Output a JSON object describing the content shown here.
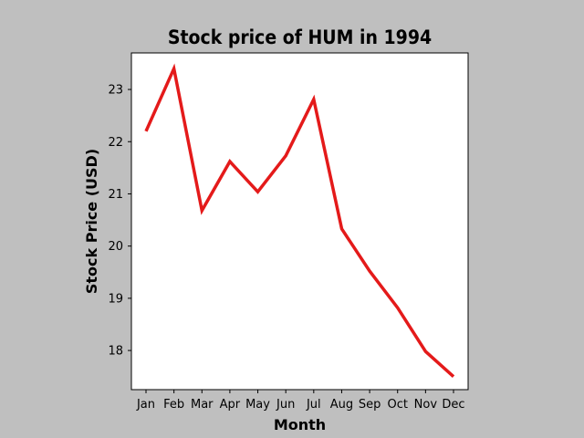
{
  "chart_data": {
    "type": "line",
    "title": "Stock price of HUM in 1994",
    "xlabel": "Month",
    "ylabel": "Stock Price (USD)",
    "categories": [
      "Jan",
      "Feb",
      "Mar",
      "Apr",
      "May",
      "Jun",
      "Jul",
      "Aug",
      "Sep",
      "Oct",
      "Nov",
      "Dec"
    ],
    "series": [
      {
        "values": [
          22.2,
          23.4,
          20.68,
          21.62,
          21.04,
          21.73,
          22.81,
          20.33,
          19.52,
          18.82,
          17.98,
          17.5
        ],
        "color": "#e41a1a"
      }
    ],
    "yticks": [
      18,
      19,
      20,
      21,
      22,
      23
    ],
    "ylim": [
      17.25,
      23.7
    ],
    "grid": false,
    "legend": "none"
  },
  "colors": {
    "background": "#bfbfbf",
    "plot_background": "#ffffff",
    "line": "#e41a1a"
  }
}
